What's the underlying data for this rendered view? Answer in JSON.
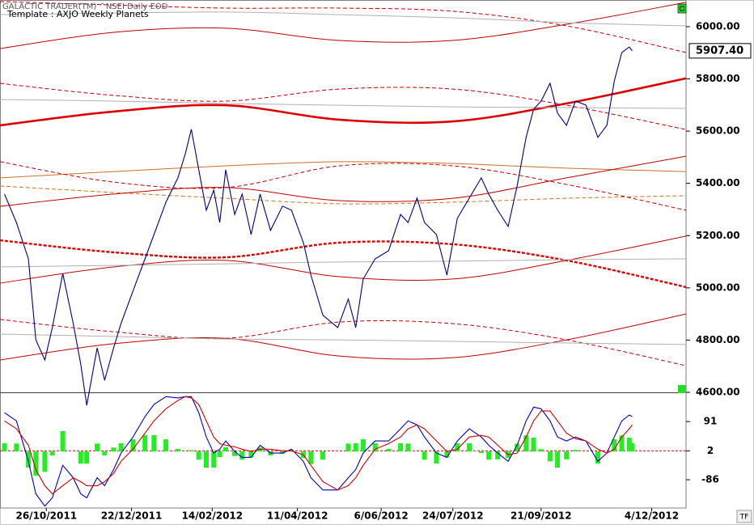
{
  "chart_data": [
    {
      "type": "line",
      "subtitle": "GALACTIC TRADER(TM)     ^NSEI Daily EOD",
      "title": "Template : AXJO Weekly Planets",
      "xlim": [
        "25/09/2011",
        "27/12/2012"
      ],
      "xticks": [
        "26/10/2011",
        "22/12/2011",
        "14/02/2012",
        "11/04/2012",
        "6/06/2012",
        "24/07/2012",
        "21/09/2012",
        "4/12/2012"
      ],
      "ylim": [
        4600,
        6102
      ],
      "yticks": [
        {
          "value": 4600,
          "label": "4600.00"
        },
        {
          "value": 4800,
          "label": "4800.00"
        },
        {
          "value": 5000,
          "label": "5000.00"
        },
        {
          "value": 5200,
          "label": "5200.00"
        },
        {
          "value": 5400,
          "label": "5400.00"
        },
        {
          "value": 5600,
          "label": "5600.00"
        },
        {
          "value": 5800,
          "label": "5800.00"
        },
        {
          "value": 6000,
          "label": "6000.00"
        }
      ],
      "x": [
        "28/09/2011",
        "6/10/2011",
        "14/10/2011",
        "19/10/2011",
        "25/10/2011",
        "30/10/2011",
        "6/11/2011",
        "13/11/2011",
        "18/11/2011",
        "22/11/2011",
        "29/11/2011",
        "4/12/2011",
        "10/12/2011",
        "15/12/2011",
        "23/12/2011",
        "31/12/2011",
        "6/01/2012",
        "14/01/2012",
        "22/01/2012",
        "27/01/2012",
        "31/01/2012",
        "5/02/2012",
        "10/02/2012",
        "15/02/2012",
        "19/02/2012",
        "23/02/2012",
        "29/02/2012",
        "5/03/2012",
        "11/03/2012",
        "17/03/2012",
        "24/03/2012",
        "1/04/2012",
        "7/04/2012",
        "15/04/2012",
        "20/04/2012",
        "28/04/2012",
        "8/05/2012",
        "15/05/2012",
        "20/05/2012",
        "25/05/2012",
        "2/06/2012",
        "11/06/2012",
        "19/06/2012",
        "24/06/2012",
        "30/06/2012",
        "5/07/2012",
        "13/07/2012",
        "20/07/2012",
        "27/07/2012",
        "4/08/2012",
        "12/08/2012",
        "17/08/2012",
        "23/08/2012",
        "30/08/2012",
        "5/09/2012",
        "11/09/2012",
        "16/09/2012",
        "21/09/2012",
        "27/09/2012",
        "2/10/2012",
        "8/10/2012",
        "14/10/2012",
        "21/10/2012",
        "29/10/2012",
        "4/11/2012",
        "9/11/2012",
        "14/11/2012",
        "19/11/2012",
        "21/11/2012"
      ],
      "series": [
        {
          "color": "#000080",
          "values": [
            5359,
            5250,
            5111,
            4801,
            4724,
            4848,
            5055,
            4864,
            4708,
            4550,
            4770,
            4646,
            4770,
            4864,
            4988,
            5111,
            5204,
            5328,
            5421,
            5514,
            5607,
            5452,
            5297,
            5374,
            5250,
            5452,
            5281,
            5359,
            5204,
            5359,
            5220,
            5313,
            5297,
            5173,
            5049,
            4895,
            4848,
            4957,
            4848,
            5034,
            5111,
            5142,
            5281,
            5250,
            5344,
            5250,
            5204,
            5049,
            5266,
            5344,
            5421,
            5359,
            5297,
            5235,
            5390,
            5576,
            5684,
            5715,
            5783,
            5669,
            5622,
            5715,
            5700,
            5576,
            5622,
            5792,
            5901,
            5922,
            5907.4
          ]
        }
      ],
      "last_label": {
        "value": 5907.4,
        "label": "5907.40"
      },
      "overlay_x": [
        "25/09/2011",
        "10/12/2011",
        "23/02/2012",
        "9/05/2012",
        "24/07/2012",
        "8/10/2012",
        "27/12/2012"
      ],
      "overlays": [
        {
          "color": "#c00000",
          "style": "thin",
          "values": [
            5916,
            5978,
            5994,
            5947,
            5947,
            6009,
            6093
          ]
        },
        {
          "color": "#c00000",
          "style": "dashed",
          "values": [
            6096,
            6083,
            6071,
            6071,
            6059,
            6003,
            5901
          ]
        },
        {
          "color": "#b0b0b0",
          "style": "thin",
          "values": [
            6046,
            6052,
            6056,
            6046,
            6034,
            6015,
            6003
          ]
        },
        {
          "color": "#c00000",
          "style": "dashed",
          "values": [
            5783,
            5737,
            5715,
            5761,
            5761,
            5699,
            5606
          ]
        },
        {
          "color": "#dd0000",
          "style": "thick",
          "values": [
            5622,
            5675,
            5699,
            5644,
            5637,
            5706,
            5802
          ]
        },
        {
          "color": "#b0b0b0",
          "style": "thin",
          "values": [
            5721,
            5715,
            5706,
            5699,
            5693,
            5690,
            5687
          ]
        },
        {
          "color": "#d07020",
          "style": "thin",
          "values": [
            5421,
            5445,
            5467,
            5483,
            5476,
            5458,
            5445
          ]
        },
        {
          "color": "#d07020",
          "style": "dashed",
          "values": [
            5390,
            5365,
            5343,
            5322,
            5328,
            5343,
            5353
          ]
        },
        {
          "color": "#c00000",
          "style": "thin",
          "values": [
            5312,
            5359,
            5384,
            5334,
            5343,
            5421,
            5504
          ]
        },
        {
          "color": "#c00000",
          "style": "dashed",
          "values": [
            5483,
            5405,
            5384,
            5467,
            5467,
            5396,
            5297
          ]
        },
        {
          "color": "#dd0000",
          "style": "thick-dashed",
          "values": [
            5182,
            5136,
            5117,
            5173,
            5167,
            5105,
            5003
          ]
        },
        {
          "color": "#c00000",
          "style": "thin",
          "values": [
            5018,
            5080,
            5105,
            5043,
            5034,
            5105,
            5198
          ]
        },
        {
          "color": "#b0b0b0",
          "style": "thin",
          "values": [
            5080,
            5086,
            5092,
            5099,
            5102,
            5108,
            5111
          ]
        },
        {
          "color": "#c00000",
          "style": "dashed",
          "values": [
            4879,
            4832,
            4807,
            4869,
            4863,
            4801,
            4702
          ]
        },
        {
          "color": "#c00000",
          "style": "thin",
          "values": [
            4724,
            4786,
            4807,
            4739,
            4733,
            4801,
            4900
          ]
        },
        {
          "color": "#b0b0b0",
          "style": "thin",
          "values": [
            4823,
            4814,
            4804,
            4801,
            4795,
            4789,
            4783
          ]
        }
      ]
    },
    {
      "type": "line",
      "ylim": [
        -172,
        175
      ],
      "yticks": [
        -86,
        2,
        91
      ],
      "reference": 2,
      "series": [
        {
          "color": "#0000c0",
          "values": [
            118,
            93,
            -30,
            -129,
            -166,
            -141,
            -42,
            -80,
            -129,
            -141,
            -80,
            -104,
            -55,
            -5,
            44,
            106,
            143,
            167,
            163,
            167,
            167,
            118,
            44,
            -5,
            7,
            32,
            0,
            -18,
            -18,
            19,
            -5,
            -5,
            7,
            -30,
            -80,
            -117,
            -117,
            -80,
            -55,
            -5,
            32,
            32,
            69,
            93,
            81,
            44,
            -5,
            -18,
            32,
            69,
            44,
            19,
            -5,
            -30,
            19,
            93,
            135,
            130,
            93,
            44,
            32,
            44,
            32,
            -30,
            -5,
            44,
            93,
            111,
            106
          ]
        },
        {
          "color": "#d00000",
          "values": [
            93,
            69,
            19,
            -55,
            -104,
            -129,
            -104,
            -80,
            -92,
            -104,
            -104,
            -92,
            -67,
            -30,
            7,
            56,
            93,
            130,
            155,
            167,
            163,
            143,
            93,
            44,
            24,
            19,
            14,
            7,
            0,
            7,
            7,
            2,
            2,
            -10,
            -42,
            -92,
            -117,
            -104,
            -80,
            -42,
            7,
            24,
            44,
            69,
            81,
            69,
            32,
            0,
            7,
            44,
            49,
            44,
            19,
            -10,
            -5,
            44,
            93,
            123,
            123,
            93,
            56,
            39,
            32,
            7,
            -5,
            7,
            44,
            69,
            81
          ]
        }
      ],
      "histogram": {
        "color": "#22ee22",
        "values": [
          25,
          24,
          -49,
          -74,
          -62,
          -12,
          62,
          0,
          -37,
          -37,
          24,
          -12,
          12,
          25,
          37,
          50,
          50,
          37,
          8,
          0,
          4,
          -25,
          -49,
          -49,
          -17,
          13,
          -14,
          -25,
          -18,
          12,
          -12,
          -7,
          5,
          -20,
          -38,
          -25,
          0,
          24,
          25,
          37,
          25,
          8,
          25,
          24,
          0,
          -25,
          -37,
          -18,
          25,
          25,
          -5,
          -25,
          -24,
          -20,
          24,
          49,
          42,
          7,
          -30,
          -49,
          -24,
          5,
          0,
          -37,
          0,
          37,
          49,
          42,
          25
        ]
      }
    }
  ],
  "toolbar": {
    "tf_button": "TF"
  }
}
